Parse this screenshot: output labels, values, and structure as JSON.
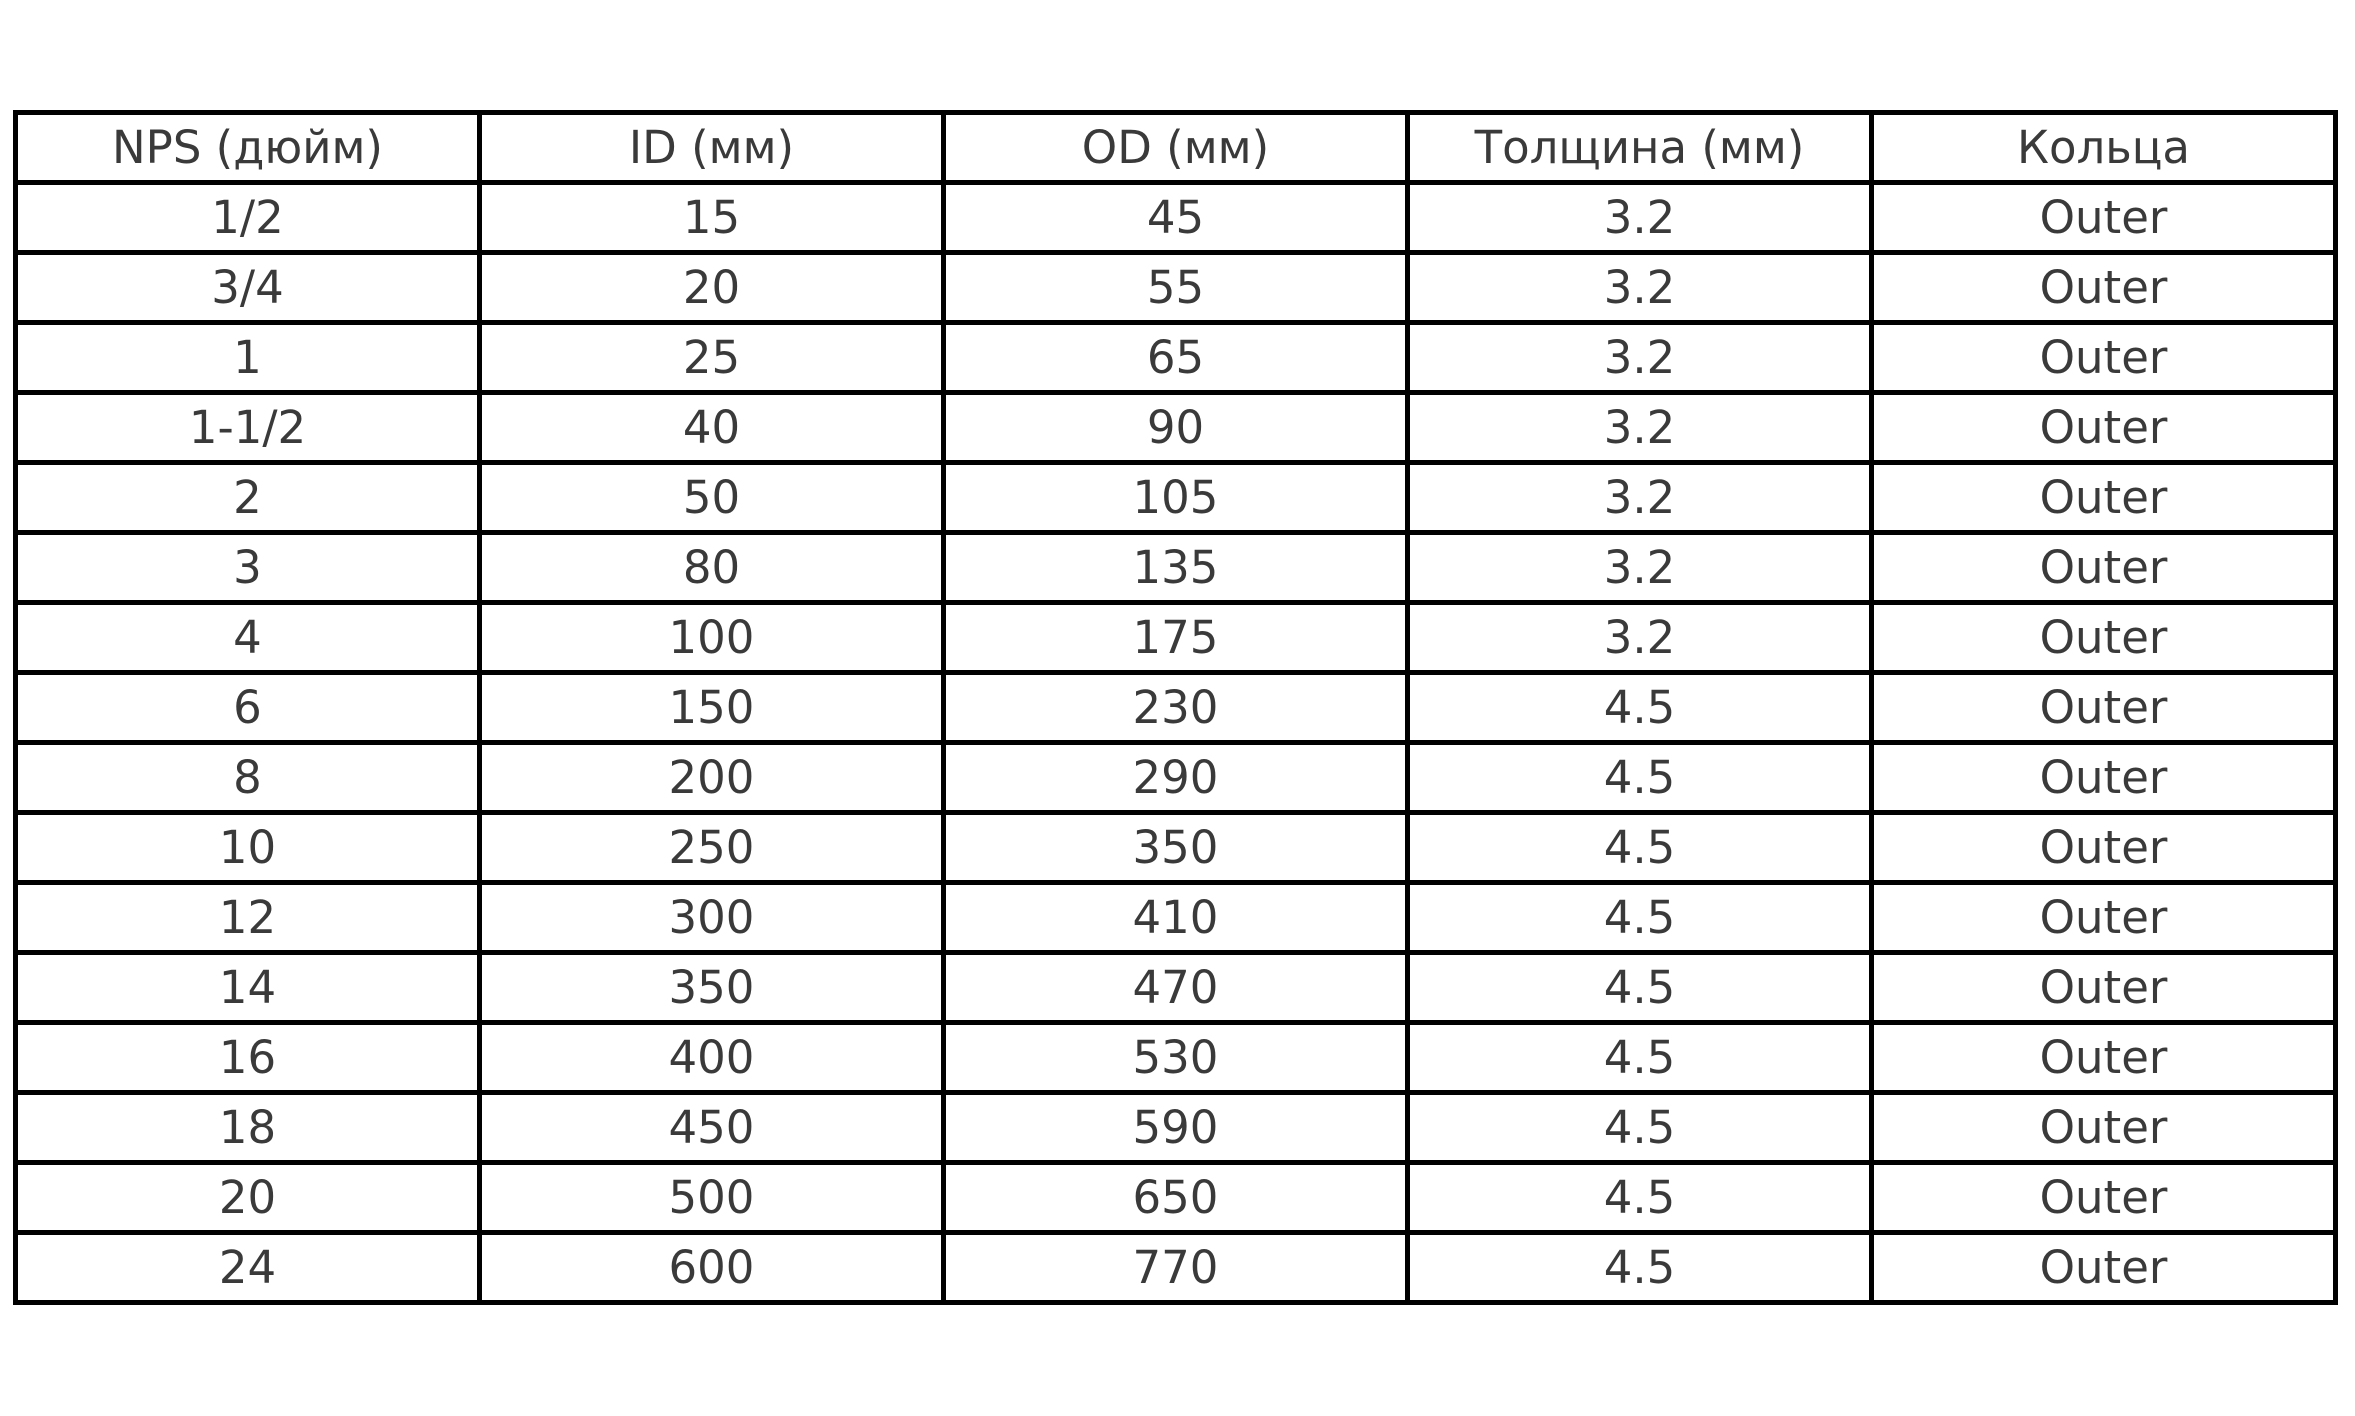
{
  "chart_data": {
    "type": "table",
    "title": "",
    "columns": [
      "NPS (дюйм)",
      "ID (мм)",
      "OD (мм)",
      "Толщина (мм)",
      "Кольца"
    ],
    "rows": [
      [
        "1/2",
        "15",
        "45",
        "3.2",
        "Outer"
      ],
      [
        "3/4",
        "20",
        "55",
        "3.2",
        "Outer"
      ],
      [
        "1",
        "25",
        "65",
        "3.2",
        "Outer"
      ],
      [
        "1-1/2",
        "40",
        "90",
        "3.2",
        "Outer"
      ],
      [
        "2",
        "50",
        "105",
        "3.2",
        "Outer"
      ],
      [
        "3",
        "80",
        "135",
        "3.2",
        "Outer"
      ],
      [
        "4",
        "100",
        "175",
        "3.2",
        "Outer"
      ],
      [
        "6",
        "150",
        "230",
        "4.5",
        "Outer"
      ],
      [
        "8",
        "200",
        "290",
        "4.5",
        "Outer"
      ],
      [
        "10",
        "250",
        "350",
        "4.5",
        "Outer"
      ],
      [
        "12",
        "300",
        "410",
        "4.5",
        "Outer"
      ],
      [
        "14",
        "350",
        "470",
        "4.5",
        "Outer"
      ],
      [
        "16",
        "400",
        "530",
        "4.5",
        "Outer"
      ],
      [
        "18",
        "450",
        "590",
        "4.5",
        "Outer"
      ],
      [
        "20",
        "500",
        "650",
        "4.5",
        "Outer"
      ],
      [
        "24",
        "600",
        "770",
        "4.5",
        "Outer"
      ]
    ],
    "layout": {
      "grid": "full-borders",
      "text_align": "center"
    }
  },
  "colors": {
    "background": "#ffffff",
    "border": "#000000",
    "text": "#3a3a3a"
  }
}
